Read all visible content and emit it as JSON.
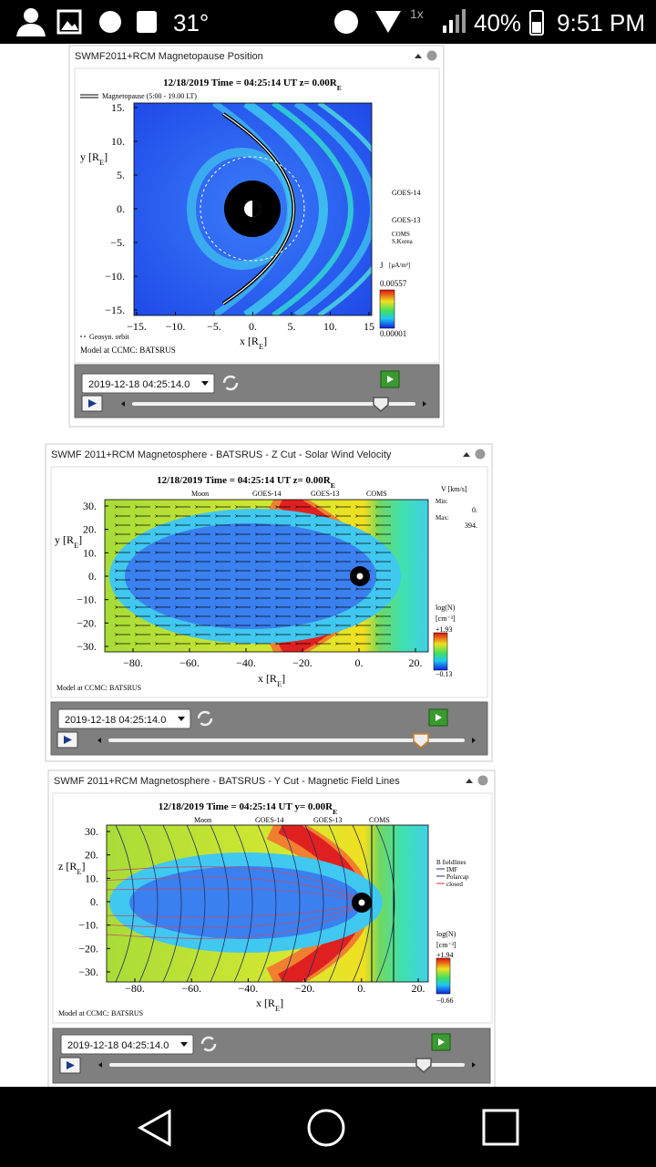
{
  "status_bar": {
    "temperature": "31°",
    "speed": "1x",
    "battery": "40%",
    "time": "9:51 PM"
  },
  "panels": [
    {
      "title": "SWMF2011+RCM Magnetopause Position",
      "plot": {
        "header": {
          "text": "12/18/2019 Time = 04:25:14 UT z= 0.00R",
          "sub": "E"
        },
        "legend_line": "Magnetopause (5:00 - 19.00 LT)",
        "y_label": {
          "text": "y [R",
          "sub": "E",
          "end": "]"
        },
        "x_label": {
          "text": "x [R",
          "sub": "E",
          "end": "]"
        },
        "yticks": [
          "15.",
          "10.",
          "5.",
          "0.",
          "−5.",
          "−10.",
          "−15."
        ],
        "xticks": [
          "−15.",
          "−10.",
          "−5.",
          "0.",
          "5.",
          "10.",
          "15"
        ],
        "goes14": "GOES-14",
        "goes13": "GOES-13",
        "coms": "COMS",
        "coms_note": "S.Korea",
        "j_label": "J",
        "j_unit": "[µA/m²]",
        "color_max": "0.00557",
        "color_min": "0.00001",
        "geosync": "Geosyn. orbit",
        "credit": "Model at CCMC: BATSRUS"
      },
      "controls": {
        "date": "2019-12-18 04:25:14.0"
      }
    },
    {
      "title": "SWMF 2011+RCM Magnetosphere - BATSRUS - Z Cut - Solar Wind Velocity",
      "plot": {
        "header": {
          "text": "12/18/2019 Time = 04:25:14 UT z= 0.00R",
          "sub": "E"
        },
        "legend": [
          "Moon",
          "GOES-14",
          "GOES-13",
          "COMS"
        ],
        "y_label": {
          "text": "y [R",
          "sub": "E",
          "end": "]"
        },
        "x_label": {
          "text": "x [R",
          "sub": "E",
          "end": "]"
        },
        "yticks": [
          "30.",
          "20.",
          "10.",
          "0.",
          "−10.",
          "−20.",
          "−30."
        ],
        "xticks": [
          "−80.",
          "−60.",
          "−40.",
          "−20.",
          "0.",
          "20."
        ],
        "v_label": "V [km/s]",
        "min_label": "Min:",
        "min": "0.",
        "max_label": "Max:",
        "max": "394.",
        "log_label": "log(N)",
        "log_unit": "[cm⁻³]",
        "color_max": "+1.93",
        "color_min": "−0.13",
        "credit": "Model at CCMC: BATSRUS"
      },
      "controls": {
        "date": "2019-12-18 04:25:14.0"
      }
    },
    {
      "title": "SWMF 2011+RCM Magnetosphere - BATSRUS - Y Cut - Magnetic Field Lines",
      "plot": {
        "header": {
          "text": "12/18/2019 Time = 04:25:14 UT y= 0.00R",
          "sub": "E"
        },
        "legend": [
          "Moon",
          "GOES-14",
          "GOES-13",
          "COMS"
        ],
        "y_label": {
          "text": "z [R",
          "sub": "E",
          "end": "]"
        },
        "x_label": {
          "text": "x [R",
          "sub": "E",
          "end": "]"
        },
        "yticks": [
          "30.",
          "20.",
          "10.",
          "0.",
          "−10.",
          "−20.",
          "−30."
        ],
        "xticks": [
          "−80.",
          "−60.",
          "−40.",
          "−20.",
          "0.",
          "20."
        ],
        "fieldlines": "B fieldlines",
        "imf": "IMF",
        "polarcap": "Polarcap",
        "closed": "closed",
        "log_label": "log(N)",
        "log_unit": "[cm⁻³]",
        "color_max": "+1.94",
        "color_min": "−0.66",
        "credit": "Model at CCMC: BATSRUS"
      },
      "controls": {
        "date": "2019-12-18 04:25:14.0"
      }
    }
  ]
}
